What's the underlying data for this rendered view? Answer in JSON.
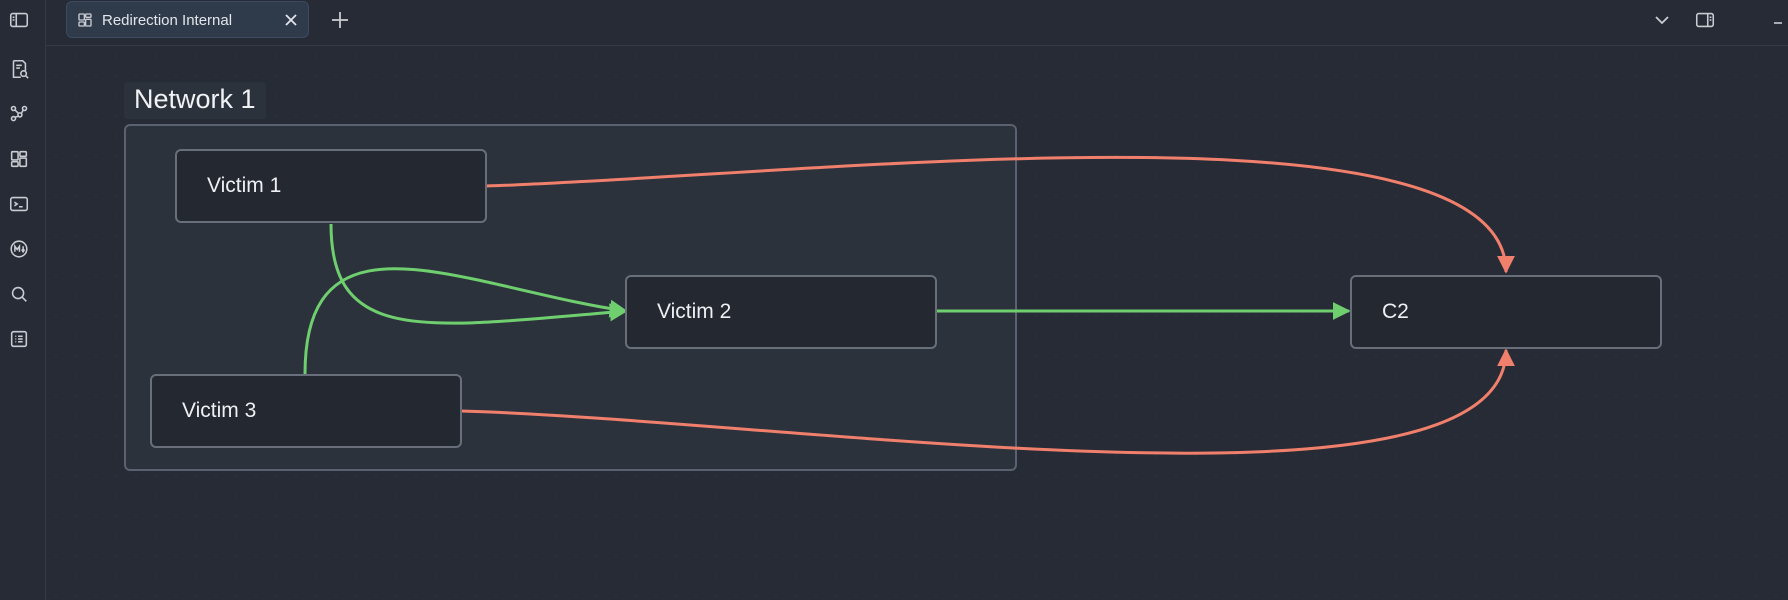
{
  "tab": {
    "title": "Redirection Internal",
    "icon": "canvas-icon"
  },
  "canvas": {
    "group": {
      "label": "Network 1"
    },
    "nodes": [
      {
        "id": "victim1",
        "label": "Victim 1"
      },
      {
        "id": "victim2",
        "label": "Victim 2"
      },
      {
        "id": "victim3",
        "label": "Victim 3"
      },
      {
        "id": "c2",
        "label": "C2"
      }
    ],
    "edges": [
      {
        "from": "Victim 1",
        "to": "Victim 2",
        "color": "#6fcf6f"
      },
      {
        "from": "Victim 3",
        "to": "Victim 2",
        "color": "#6fcf6f"
      },
      {
        "from": "Victim 2",
        "to": "C2",
        "color": "#6fcf6f"
      },
      {
        "from": "Victim 1",
        "to": "C2",
        "color": "#f07f6c"
      },
      {
        "from": "Victim 3",
        "to": "C2",
        "color": "#f07f6c"
      }
    ]
  },
  "colors": {
    "background": "#262b35",
    "tab_active": "#2f3a4b",
    "green_edge": "#6fcf6f",
    "red_edge": "#f07f6c",
    "node_border": "#686e7a"
  },
  "ribbon": {
    "icons": [
      "sidebar-toggle-icon",
      "search-note-icon",
      "graph-view-icon",
      "canvas-icon",
      "terminal-icon",
      "markdown-icon",
      "search-icon",
      "list-icon"
    ]
  }
}
